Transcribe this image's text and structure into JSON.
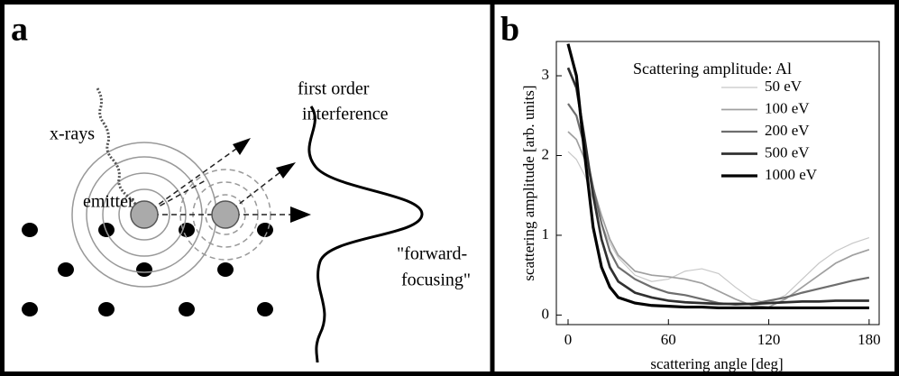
{
  "figure": {
    "labels": [
      "a",
      "b"
    ]
  },
  "diagram": {
    "xrays": "x-rays",
    "emitter": "emitter",
    "interference": [
      "first order",
      "interference"
    ],
    "forward": [
      "\"forward-",
      "focusing\""
    ]
  },
  "chart_data": {
    "type": "line",
    "title": "Scattering amplitude: Al",
    "x_label": "scattering angle [deg]",
    "y_label": "scattering amplitude [arb. units]",
    "x": [
      0,
      5,
      10,
      15,
      20,
      25,
      30,
      40,
      50,
      60,
      70,
      80,
      90,
      100,
      110,
      120,
      130,
      140,
      150,
      160,
      170,
      180
    ],
    "series": [
      {
        "name": "50 eV",
        "color": "#c8c8c8",
        "values": [
          2.05,
          1.95,
          1.75,
          1.45,
          1.15,
          0.9,
          0.72,
          0.5,
          0.42,
          0.45,
          0.55,
          0.58,
          0.52,
          0.35,
          0.2,
          0.15,
          0.25,
          0.45,
          0.65,
          0.8,
          0.9,
          0.97
        ]
      },
      {
        "name": "100 eV",
        "color": "#a0a0a0",
        "values": [
          2.3,
          2.2,
          1.95,
          1.6,
          1.25,
          0.95,
          0.75,
          0.55,
          0.5,
          0.48,
          0.45,
          0.4,
          0.3,
          0.2,
          0.12,
          0.1,
          0.2,
          0.35,
          0.5,
          0.65,
          0.75,
          0.82
        ]
      },
      {
        "name": "200 eV",
        "color": "#6e6e6e",
        "values": [
          2.65,
          2.5,
          2.1,
          1.6,
          1.15,
          0.8,
          0.6,
          0.45,
          0.35,
          0.28,
          0.25,
          0.2,
          0.15,
          0.13,
          0.14,
          0.18,
          0.22,
          0.28,
          0.33,
          0.38,
          0.43,
          0.47
        ]
      },
      {
        "name": "500 eV",
        "color": "#303030",
        "values": [
          3.1,
          2.85,
          2.2,
          1.5,
          0.95,
          0.6,
          0.42,
          0.28,
          0.22,
          0.18,
          0.16,
          0.15,
          0.14,
          0.14,
          0.14,
          0.15,
          0.16,
          0.17,
          0.17,
          0.18,
          0.18,
          0.18
        ]
      },
      {
        "name": "1000 eV",
        "color": "#000000",
        "values": [
          3.4,
          3.0,
          2.0,
          1.1,
          0.6,
          0.35,
          0.22,
          0.15,
          0.12,
          0.11,
          0.1,
          0.1,
          0.09,
          0.09,
          0.09,
          0.09,
          0.09,
          0.09,
          0.09,
          0.09,
          0.09,
          0.09
        ]
      }
    ],
    "xlim": [
      -7,
      186
    ],
    "ylim": [
      -0.12,
      3.43
    ],
    "xticks": [
      0,
      60,
      120,
      180
    ],
    "yticks": [
      0,
      1,
      2,
      3
    ],
    "legend": "top-right"
  }
}
